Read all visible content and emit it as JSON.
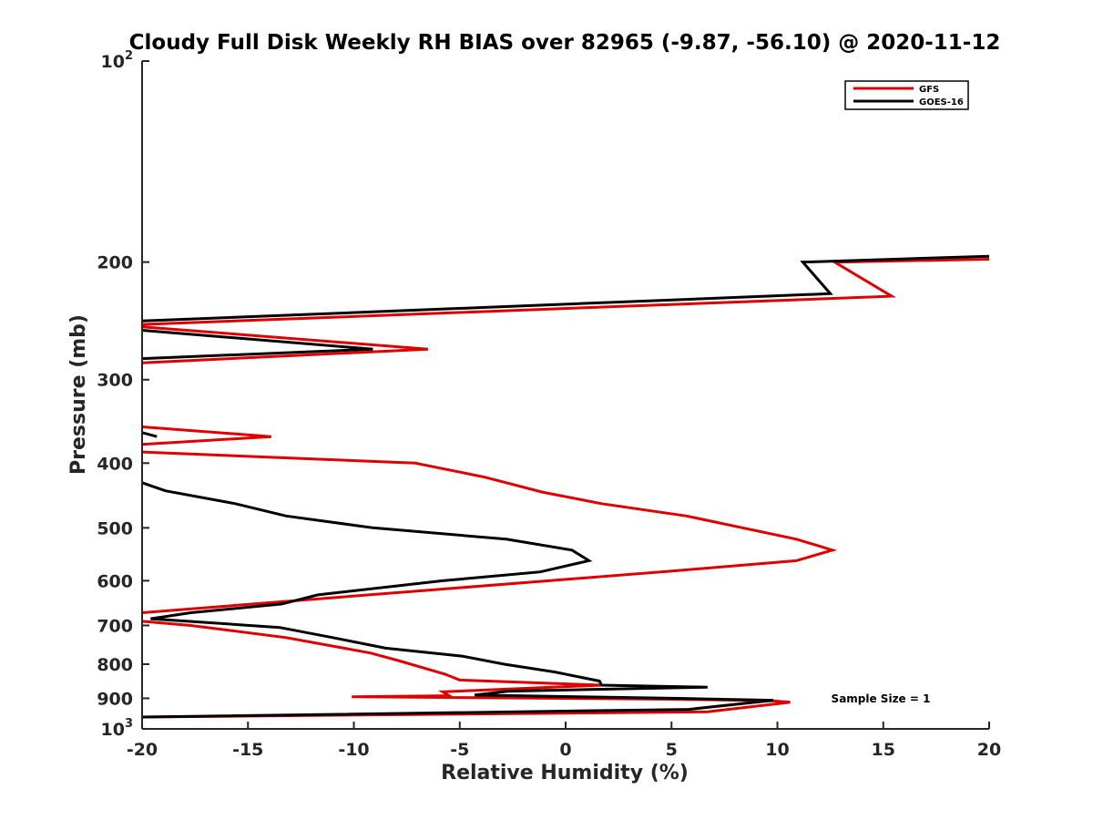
{
  "chart_data": {
    "type": "line",
    "title": "Cloudy Full Disk Weekly RH BIAS over 82965 (-9.87, -56.10) @ 2020-11-12",
    "xlabel": "Relative Humidity (%)",
    "ylabel": "Pressure (mb)",
    "xlim": [
      -20,
      20
    ],
    "ylim": [
      100,
      1000
    ],
    "yscale": "log",
    "y_reversed": true,
    "x_ticks": [
      "-20",
      "-15",
      "-10",
      "-5",
      "0",
      "5",
      "10",
      "15",
      "20"
    ],
    "y_ticks": [
      {
        "value": 100,
        "base": "10",
        "exp": "2"
      },
      {
        "value": 200,
        "label": "200"
      },
      {
        "value": 300,
        "label": "300"
      },
      {
        "value": 400,
        "label": "400"
      },
      {
        "value": 500,
        "label": "500"
      },
      {
        "value": 600,
        "label": "600"
      },
      {
        "value": 700,
        "label": "700"
      },
      {
        "value": 800,
        "label": "800"
      },
      {
        "value": 900,
        "label": "900"
      },
      {
        "value": 1000,
        "base": "10",
        "exp": "3"
      }
    ],
    "legend_position": "top-right",
    "annotation": "Sample Size = 1",
    "series": [
      {
        "name": "GFS",
        "color": "#e00000",
        "segments": [
          [
            [
              20,
              198
            ],
            [
              12.7,
              200
            ],
            [
              15.4,
              225
            ],
            [
              -20,
              248
            ]
          ],
          [
            [
              -20,
              250
            ],
            [
              -6.5,
              270
            ],
            [
              -20,
              283
            ]
          ],
          [
            [
              -20,
              353
            ],
            [
              -13.9,
              365
            ],
            [
              -20,
              375
            ]
          ],
          [
            [
              -20,
              385
            ],
            [
              -7.1,
              400
            ],
            [
              -3.8,
              420
            ],
            [
              -1.1,
              442
            ],
            [
              1.7,
              460
            ],
            [
              5.7,
              480
            ],
            [
              10.9,
              520
            ],
            [
              12.6,
              540
            ],
            [
              10.9,
              560
            ],
            [
              5.1,
              580
            ],
            [
              -20,
              670
            ]
          ],
          [
            [
              -20,
              690
            ],
            [
              -17.7,
              700
            ],
            [
              -13.2,
              730
            ],
            [
              -9.2,
              770
            ],
            [
              -7.9,
              790
            ],
            [
              -5.7,
              828
            ],
            [
              -5.0,
              845
            ],
            [
              1.7,
              860
            ],
            [
              -5.8,
              880
            ],
            [
              -5.5,
              892
            ],
            [
              -10.1,
              895
            ],
            [
              5.3,
              903
            ],
            [
              9.8,
              908
            ],
            [
              10.6,
              912
            ],
            [
              6.7,
              943
            ],
            [
              -20,
              960
            ]
          ]
        ]
      },
      {
        "name": "GOES-16",
        "color": "#000000",
        "segments": [
          [
            [
              20,
              196
            ],
            [
              11.2,
              200
            ],
            [
              12.5,
              223
            ],
            [
              -20,
              245
            ]
          ],
          [
            [
              -20,
              253
            ],
            [
              -9.1,
              270
            ],
            [
              -20,
              279
            ]
          ],
          [
            [
              -20,
              360
            ],
            [
              -19.3,
              365
            ]
          ],
          [
            [
              -20,
              428
            ],
            [
              -18.9,
              440
            ],
            [
              -15.6,
              460
            ],
            [
              -13.2,
              480
            ],
            [
              -9.1,
              500
            ],
            [
              -2.8,
              520
            ],
            [
              0.3,
              540
            ],
            [
              1.1,
              560
            ],
            [
              -1.2,
              582
            ],
            [
              -5.8,
              600
            ],
            [
              -11.7,
              630
            ],
            [
              -13.4,
              650
            ],
            [
              -17.7,
              670
            ],
            [
              -19.6,
              684
            ],
            [
              -13.5,
              705
            ],
            [
              -11.0,
              730
            ],
            [
              -8.5,
              757
            ],
            [
              -4.9,
              778
            ],
            [
              -2.9,
              800
            ],
            [
              -0.5,
              822
            ],
            [
              1.6,
              848
            ],
            [
              1.7,
              860
            ],
            [
              6.7,
              866
            ],
            [
              -2.7,
              878
            ],
            [
              -4.3,
              890
            ],
            [
              5.4,
              900
            ],
            [
              9.8,
              906
            ],
            [
              5.8,
              935
            ],
            [
              -20,
              960
            ]
          ]
        ]
      }
    ]
  }
}
